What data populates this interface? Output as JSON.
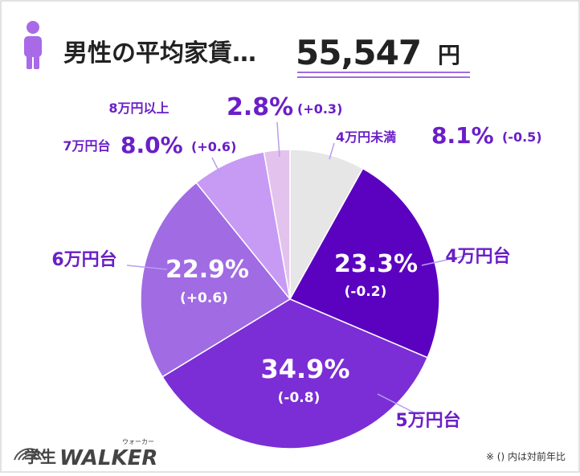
{
  "header": {
    "title": "男性の平均家賃…",
    "amount": "55,547",
    "unit": "円"
  },
  "note": "※ () 内は対前年比",
  "brand": {
    "prefix": "学生",
    "name": "WALKER",
    "ruby": "ウォーカー"
  },
  "colors": {
    "accent": "#6a1fc7",
    "accent_dark": "#5a12b8",
    "line": "#b79ef0"
  },
  "chart_data": {
    "type": "pie",
    "title": "男性の平均家賃…55,547円",
    "slices": [
      {
        "label": "4万円未満",
        "value": 8.1,
        "value_text": "8.1%",
        "change": "(-0.5)",
        "color": "#e6e6e6"
      },
      {
        "label": "4万円台",
        "value": 23.3,
        "value_text": "23.3%",
        "change": "(-0.2)",
        "color": "#5b02c0"
      },
      {
        "label": "5万円台",
        "value": 34.9,
        "value_text": "34.9%",
        "change": "(-0.8)",
        "color": "#7b2ed5"
      },
      {
        "label": "6万円台",
        "value": 22.9,
        "value_text": "22.9%",
        "change": "(+0.6)",
        "color": "#a06be3"
      },
      {
        "label": "7万円台",
        "value": 8.0,
        "value_text": "8.0%",
        "change": "(+0.6)",
        "color": "#c79bf4"
      },
      {
        "label": "8万円以上",
        "value": 2.8,
        "value_text": "2.8%",
        "change": "(+0.3)",
        "color": "#e4c2ee"
      }
    ]
  }
}
